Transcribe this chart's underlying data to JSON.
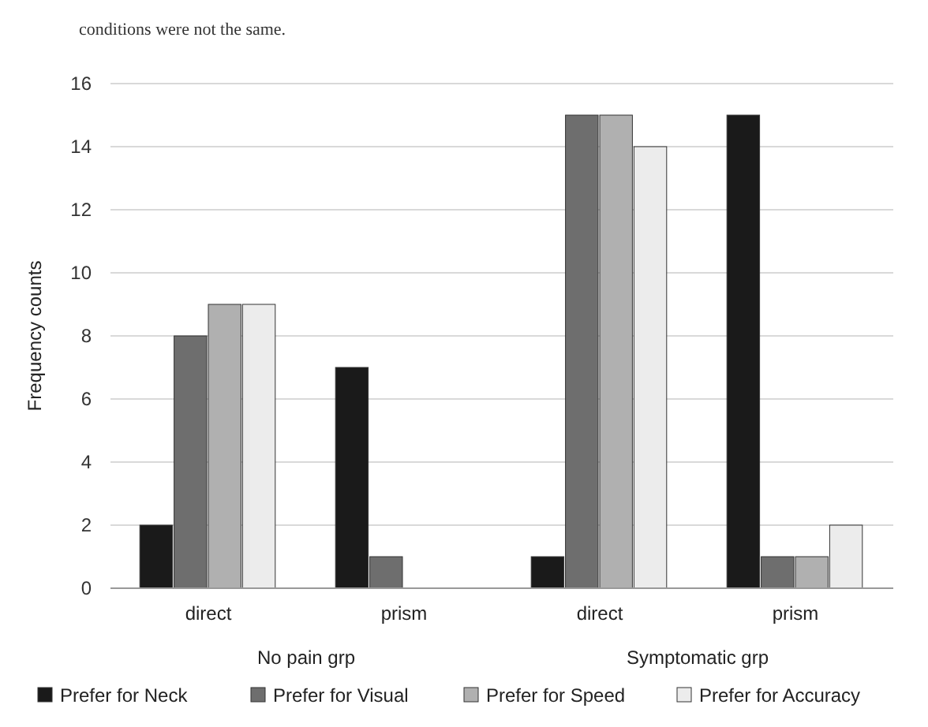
{
  "chart_data": {
    "type": "bar",
    "ylabel": "Frequency counts",
    "categories": [
      "direct",
      "prism",
      "direct",
      "prism"
    ],
    "series": [
      {
        "name": "Prefer for Neck",
        "color": "#1a1a1a",
        "values": [
          2,
          7,
          1,
          15
        ]
      },
      {
        "name": "Prefer for Visual",
        "color": "#6e6e6e",
        "values": [
          8,
          1,
          15,
          1
        ]
      },
      {
        "name": "Prefer for Speed",
        "color": "#b0b0b0",
        "values": [
          9,
          0,
          15,
          1
        ]
      },
      {
        "name": "Prefer for Accuracy",
        "color": "#ececec",
        "values": [
          9,
          0,
          14,
          2
        ]
      }
    ],
    "ylim": [
      0,
      16
    ],
    "yticks": [
      0,
      2,
      4,
      6,
      8,
      10,
      12,
      14,
      16
    ],
    "grid": "y",
    "legend": "bottom",
    "annotations": [
      "conditions were not the same.",
      "No pain grp",
      "Symptomatic grp"
    ]
  }
}
